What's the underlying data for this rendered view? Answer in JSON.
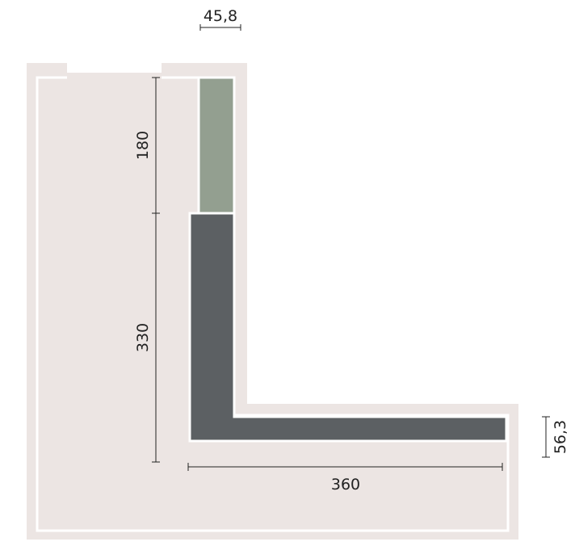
{
  "dimensions": {
    "top_width": "45,8",
    "upper_height": "180",
    "lower_height": "330",
    "bottom_length": "360",
    "right_height": "56,3"
  },
  "colors": {
    "floor": "#ece5e3",
    "wall_outline": "#ffffff",
    "upper_unit": "#939f90",
    "lower_unit": "#5c6063",
    "dimension_line": "#222222"
  }
}
